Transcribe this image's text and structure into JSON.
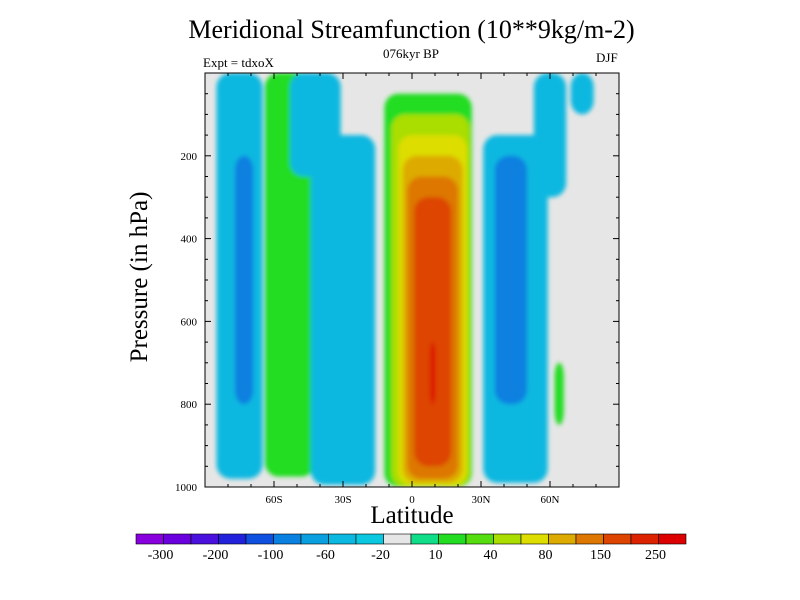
{
  "chart_data": {
    "type": "contour",
    "title": "Meridional Streamfunction (10**9kg/m-2)",
    "subtitle": "076kyr BP",
    "left_label": "Expt = tdxoX",
    "right_label": "DJF",
    "xlabel": "Latitude",
    "ylabel": "Pressure (in hPa)",
    "xlim": [
      -90,
      90
    ],
    "ylim": [
      1000,
      0
    ],
    "x_ticks": [
      {
        "v": -60,
        "label": "60S"
      },
      {
        "v": -30,
        "label": "30S"
      },
      {
        "v": 0,
        "label": "0"
      },
      {
        "v": 30,
        "label": "30N"
      },
      {
        "v": 60,
        "label": "60N"
      }
    ],
    "y_ticks": [
      200,
      400,
      600,
      800,
      1000
    ],
    "levels": [
      "-300",
      "-200",
      "-100",
      "-60",
      "-20",
      "10",
      "40",
      "80",
      "150",
      "250"
    ],
    "colorbar_colors": [
      "#8800dd",
      "#6a00dd",
      "#4a10dd",
      "#2222dd",
      "#1050e0",
      "#0a80e0",
      "#0aa0e0",
      "#0ab8e0",
      "#0ac8e0",
      "#e6e6e6",
      "#10dd88",
      "#22dd22",
      "#55dd10",
      "#aadd00",
      "#dddd00",
      "#ddaa00",
      "#dd7700",
      "#dd4400",
      "#dd2200",
      "#dd0000"
    ],
    "background_color": "#e6e6e6",
    "regions": [
      {
        "name": "southern-cell-1",
        "lat": -75,
        "half_width": 10,
        "top": 0,
        "bottom": 980,
        "value": -25
      },
      {
        "name": "southern-cell-1-core",
        "lat": -73,
        "half_width": 4,
        "top": 200,
        "bottom": 800,
        "value": -70
      },
      {
        "name": "ferrel-south-positive",
        "lat": -53,
        "half_width": 11,
        "top": 0,
        "bottom": 975,
        "value": 25
      },
      {
        "name": "southern-upper-negative",
        "lat": -42,
        "half_width": 11,
        "top": 0,
        "bottom": 250,
        "value": -25
      },
      {
        "name": "southern-hadley-negative",
        "lat": -30,
        "half_width": 14,
        "top": 150,
        "bottom": 995,
        "value": -25
      },
      {
        "name": "northern-hadley-1",
        "lat": 7,
        "half_width": 19,
        "top": 50,
        "bottom": 1000,
        "value": 25
      },
      {
        "name": "northern-hadley-2",
        "lat": 8,
        "half_width": 17,
        "top": 100,
        "bottom": 1000,
        "value": 60
      },
      {
        "name": "northern-hadley-3",
        "lat": 9,
        "half_width": 15,
        "top": 150,
        "bottom": 995,
        "value": 100
      },
      {
        "name": "northern-hadley-4",
        "lat": 9,
        "half_width": 13,
        "top": 200,
        "bottom": 990,
        "value": 130
      },
      {
        "name": "northern-hadley-5",
        "lat": 9,
        "half_width": 11,
        "top": 250,
        "bottom": 980,
        "value": 170
      },
      {
        "name": "northern-hadley-6",
        "lat": 9,
        "half_width": 8,
        "top": 300,
        "bottom": 950,
        "value": 210
      },
      {
        "name": "northern-hadley-core",
        "lat": 9,
        "half_width": 1,
        "top": 650,
        "bottom": 800,
        "value": 260
      },
      {
        "name": "northern-ferrel-negative",
        "lat": 45,
        "half_width": 14,
        "top": 150,
        "bottom": 990,
        "value": -25
      },
      {
        "name": "northern-ferrel-core",
        "lat": 43,
        "half_width": 7,
        "top": 200,
        "bottom": 800,
        "value": -70
      },
      {
        "name": "northern-upper-negative",
        "lat": 60,
        "half_width": 7,
        "top": 0,
        "bottom": 300,
        "value": -25
      },
      {
        "name": "northern-polar-negative",
        "lat": 74,
        "half_width": 5,
        "top": 0,
        "bottom": 100,
        "value": -25
      },
      {
        "name": "northern-lower-positive",
        "lat": 64,
        "half_width": 2,
        "top": 700,
        "bottom": 850,
        "value": 15
      }
    ]
  }
}
